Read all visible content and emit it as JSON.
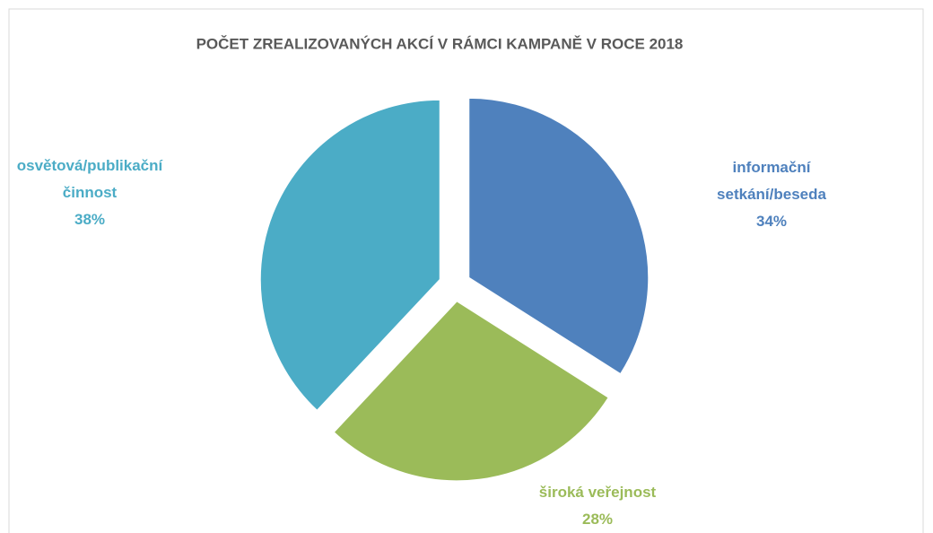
{
  "chart_data": {
    "type": "pie",
    "title": "POČET ZREALIZOVANÝCH AKCÍ V RÁMCI KAMPANĚ V ROCE 2018",
    "categories": [
      "informační setkání/beseda",
      "široká veřejnost",
      "osvětová/publikační činnost"
    ],
    "values": [
      34,
      28,
      38
    ],
    "value_labels": [
      "34%",
      "28%",
      "38%"
    ],
    "colors": [
      "#4f81bd",
      "#9bbb59",
      "#4bacc6"
    ]
  }
}
